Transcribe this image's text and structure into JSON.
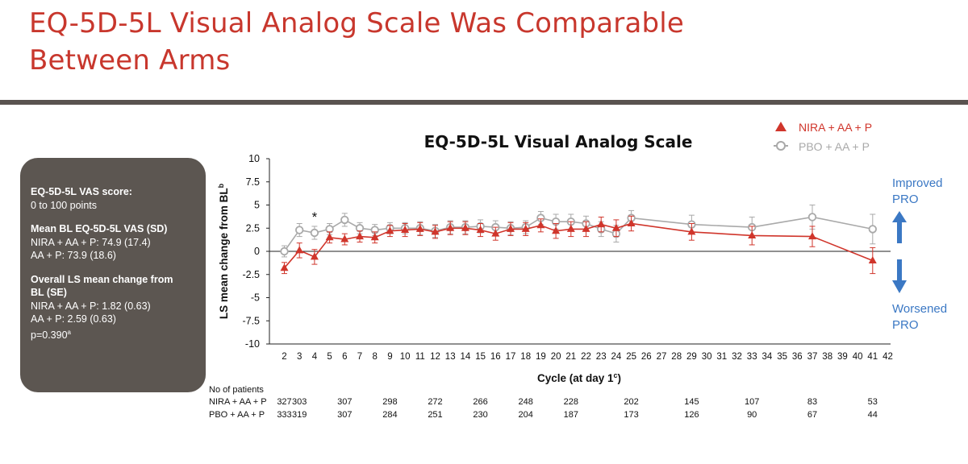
{
  "slide": {
    "title_line1": "EQ-5D-5L Visual Analog Scale Was Comparable",
    "title_line2": "Between Arms"
  },
  "info_box": {
    "score_heading": "EQ-5D-5L VAS score:",
    "score_range": "0 to 100 points",
    "bl_heading": "Mean BL EQ-5D-5L VAS (SD)",
    "bl_nira": "NIRA + AA + P: 74.9 (17.4)",
    "bl_pbo": "AA + P: 73.9 (18.6)",
    "ls_heading_1": "Overall LS mean change from",
    "ls_heading_2": "BL (SE)",
    "ls_nira": "NIRA + AA + P: 1.82 (0.63)",
    "ls_pbo": "AA + P: 2.59 (0.63)",
    "p_value": "p=0.390",
    "p_value_sup": "a"
  },
  "colors": {
    "nira": "#d0352b",
    "pbo": "#a9a9a9",
    "pro_arrow": "#3b78c4",
    "title": "#c8372d"
  },
  "annotations": {
    "improved_1": "Improved",
    "improved_2": "PRO",
    "worsened_1": "Worsened",
    "worsened_2": "PRO",
    "significance_marker": "*",
    "significance_cycle": 4
  },
  "patients": {
    "heading": "No of patients",
    "nira_label": "NIRA + AA + P",
    "pbo_label": "PBO + AA + P",
    "cycles": [
      2,
      3,
      5,
      7,
      9,
      11,
      13,
      15,
      17,
      19,
      21,
      23,
      29,
      33,
      37,
      41
    ],
    "nira_counts": [
      327,
      303,
      307,
      298,
      272,
      266,
      248,
      228,
      202,
      145,
      107,
      83,
      53
    ],
    "nira_cycles": [
      2,
      3,
      6,
      9,
      12,
      15,
      18,
      21,
      25,
      29,
      33,
      37,
      41
    ],
    "pbo_counts": [
      333,
      319,
      307,
      284,
      251,
      230,
      204,
      187,
      173,
      126,
      90,
      67,
      44
    ],
    "pbo_cycles": [
      2,
      3,
      6,
      9,
      12,
      15,
      18,
      21,
      25,
      29,
      33,
      37,
      41
    ]
  },
  "chart_data": {
    "type": "line",
    "title": "EQ-5D-5L Visual Analog Scale",
    "xlabel": "Cycle (at day 1",
    "xlabel_sup": "c",
    "xlabel_end": ")",
    "ylabel": "LS mean change from BL",
    "ylabel_sup": "b",
    "xlim": [
      2,
      42
    ],
    "ylim": [
      -10,
      10
    ],
    "yticks": [
      10,
      7.5,
      5,
      2.5,
      0,
      -2.5,
      -5,
      -7.5,
      -10
    ],
    "xticks": [
      2,
      3,
      4,
      5,
      6,
      7,
      8,
      9,
      10,
      11,
      12,
      13,
      14,
      15,
      16,
      17,
      18,
      19,
      20,
      21,
      22,
      23,
      24,
      25,
      26,
      27,
      28,
      29,
      30,
      31,
      32,
      33,
      34,
      35,
      36,
      37,
      38,
      39,
      40,
      41,
      42
    ],
    "legend_position": "top-right",
    "series": [
      {
        "name": "NIRA + AA + P",
        "marker": "triangle",
        "x": [
          2,
          3,
          4,
          5,
          6,
          7,
          8,
          9,
          10,
          11,
          12,
          13,
          14,
          15,
          16,
          17,
          18,
          19,
          20,
          21,
          22,
          23,
          24,
          25,
          29,
          33,
          37,
          41
        ],
        "y": [
          -1.8,
          0.1,
          -0.6,
          1.5,
          1.3,
          1.6,
          1.5,
          2.2,
          2.3,
          2.4,
          2.1,
          2.5,
          2.5,
          2.3,
          1.9,
          2.4,
          2.4,
          2.8,
          2.2,
          2.4,
          2.4,
          2.9,
          2.5,
          3.0,
          2.1,
          1.7,
          1.6,
          -1.0
        ],
        "err": [
          0.6,
          0.8,
          0.8,
          0.6,
          0.6,
          0.6,
          0.6,
          0.6,
          0.7,
          0.7,
          0.7,
          0.7,
          0.7,
          0.7,
          0.7,
          0.7,
          0.7,
          0.7,
          0.8,
          0.8,
          0.8,
          0.8,
          0.9,
          0.8,
          0.9,
          1.0,
          1.1,
          1.4
        ]
      },
      {
        "name": "PBO + AA + P",
        "marker": "circle",
        "x": [
          2,
          3,
          4,
          5,
          6,
          7,
          8,
          9,
          10,
          11,
          12,
          13,
          14,
          15,
          16,
          17,
          18,
          19,
          20,
          21,
          22,
          23,
          24,
          25,
          29,
          33,
          37,
          41
        ],
        "y": [
          0.0,
          2.3,
          2.0,
          2.4,
          3.4,
          2.5,
          2.3,
          2.5,
          2.5,
          2.5,
          2.2,
          2.6,
          2.6,
          2.7,
          2.6,
          2.5,
          2.6,
          3.6,
          3.2,
          3.2,
          3.0,
          2.4,
          1.9,
          3.6,
          2.9,
          2.6,
          3.7,
          2.4
        ],
        "err": [
          0.6,
          0.7,
          0.7,
          0.6,
          0.7,
          0.6,
          0.6,
          0.6,
          0.6,
          0.7,
          0.7,
          0.7,
          0.7,
          0.7,
          0.7,
          0.7,
          0.7,
          0.7,
          0.8,
          0.8,
          0.8,
          0.8,
          0.9,
          0.8,
          1.0,
          1.1,
          1.3,
          1.6
        ]
      }
    ]
  }
}
